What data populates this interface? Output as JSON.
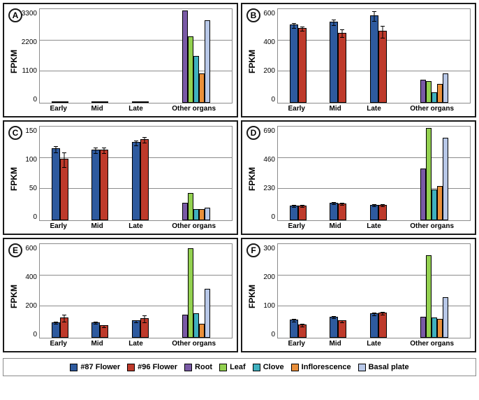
{
  "figure": {
    "ylabel": "FPKM",
    "categories_flower": [
      "Early",
      "Mid",
      "Late"
    ],
    "category_other": "Other organs",
    "flower_series": [
      "#87 Flower",
      "#96 Flower"
    ],
    "other_series": [
      "Root",
      "Leaf",
      "Clove",
      "Inflorescence",
      "Basal plate"
    ],
    "colors": {
      "#87 Flower": "#2e5a9e",
      "#96 Flower": "#be3a2b",
      "Root": "#7a5aa6",
      "Leaf": "#93d150",
      "Clove": "#3fb0bf",
      "Inflorescence": "#e98f3a",
      "Basal plate": "#b8c8e8"
    },
    "grid_color": "#8b8b8b",
    "background_color": "#ffffff",
    "label_fontsize": 12,
    "tick_fontsize": 10
  },
  "legend": [
    {
      "label": "#87 Flower",
      "color": "#2e5a9e"
    },
    {
      "label": "#96 Flower",
      "color": "#be3a2b"
    },
    {
      "label": "Root",
      "color": "#7a5aa6"
    },
    {
      "label": "Leaf",
      "color": "#93d150"
    },
    {
      "label": "Clove",
      "color": "#3fb0bf"
    },
    {
      "label": "Inflorescence",
      "color": "#e98f3a"
    },
    {
      "label": "Basal plate",
      "color": "#b8c8e8"
    }
  ],
  "panels": {
    "A": {
      "ylim": [
        0,
        3300
      ],
      "yticks": [
        0,
        1100,
        2200,
        3300
      ],
      "flower": {
        "Early": {
          "#87 Flower": 30,
          "#96 Flower": 30,
          "err": {
            "#87 Flower": 10,
            "#96 Flower": 10
          }
        },
        "Mid": {
          "#87 Flower": 30,
          "#96 Flower": 30,
          "err": {
            "#87 Flower": 10,
            "#96 Flower": 10
          }
        },
        "Late": {
          "#87 Flower": 30,
          "#96 Flower": 30,
          "err": {
            "#87 Flower": 10,
            "#96 Flower": 10
          }
        }
      },
      "other": {
        "Root": 3250,
        "Leaf": 2350,
        "Clove": 1650,
        "Inflorescence": 1040,
        "Basal plate": 2900
      }
    },
    "B": {
      "ylim": [
        0,
        600
      ],
      "yticks": [
        0,
        200,
        400,
        600
      ],
      "flower": {
        "Early": {
          "#87 Flower": 500,
          "#96 Flower": 480,
          "err": {
            "#87 Flower": 15,
            "#96 Flower": 15
          }
        },
        "Mid": {
          "#87 Flower": 520,
          "#96 Flower": 450,
          "err": {
            "#87 Flower": 20,
            "#96 Flower": 25
          }
        },
        "Late": {
          "#87 Flower": 560,
          "#96 Flower": 460,
          "err": {
            "#87 Flower": 30,
            "#96 Flower": 40
          }
        }
      },
      "other": {
        "Root": 150,
        "Leaf": 140,
        "Clove": 65,
        "Inflorescence": 120,
        "Basal plate": 190
      }
    },
    "C": {
      "ylim": [
        0,
        150
      ],
      "yticks": [
        0,
        50,
        100,
        150
      ],
      "flower": {
        "Early": {
          "#87 Flower": 115,
          "#96 Flower": 98,
          "err": {
            "#87 Flower": 5,
            "#96 Flower": 12
          }
        },
        "Mid": {
          "#87 Flower": 113,
          "#96 Flower": 113,
          "err": {
            "#87 Flower": 5,
            "#96 Flower": 5
          }
        },
        "Late": {
          "#87 Flower": 125,
          "#96 Flower": 130,
          "err": {
            "#87 Flower": 4,
            "#96 Flower": 5
          }
        }
      },
      "other": {
        "Root": 28,
        "Leaf": 44,
        "Clove": 18,
        "Inflorescence": 18,
        "Basal plate": 20
      }
    },
    "D": {
      "ylim": [
        0,
        690
      ],
      "yticks": [
        0,
        230,
        460,
        690
      ],
      "flower": {
        "Early": {
          "#87 Flower": 110,
          "#96 Flower": 110,
          "err": {
            "#87 Flower": 8,
            "#96 Flower": 8
          }
        },
        "Mid": {
          "#87 Flower": 130,
          "#96 Flower": 125,
          "err": {
            "#87 Flower": 8,
            "#96 Flower": 8
          }
        },
        "Late": {
          "#87 Flower": 115,
          "#96 Flower": 115,
          "err": {
            "#87 Flower": 8,
            "#96 Flower": 8
          }
        }
      },
      "other": {
        "Root": 380,
        "Leaf": 680,
        "Clove": 225,
        "Inflorescence": 250,
        "Basal plate": 610
      }
    },
    "E": {
      "ylim": [
        0,
        600
      ],
      "yticks": [
        0,
        200,
        400,
        600
      ],
      "flower": {
        "Early": {
          "#87 Flower": 100,
          "#96 Flower": 130,
          "err": {
            "#87 Flower": 8,
            "#96 Flower": 25
          }
        },
        "Mid": {
          "#87 Flower": 100,
          "#96 Flower": 80,
          "err": {
            "#87 Flower": 8,
            "#96 Flower": 8
          }
        },
        "Late": {
          "#87 Flower": 110,
          "#96 Flower": 125,
          "err": {
            "#87 Flower": 8,
            "#96 Flower": 25
          }
        }
      },
      "other": {
        "Root": 150,
        "Leaf": 575,
        "Clove": 155,
        "Inflorescence": 90,
        "Basal plate": 315
      }
    },
    "F": {
      "ylim": [
        0,
        300
      ],
      "yticks": [
        0,
        100,
        200,
        300
      ],
      "flower": {
        "Early": {
          "#87 Flower": 58,
          "#96 Flower": 42,
          "err": {
            "#87 Flower": 5,
            "#96 Flower": 5
          }
        },
        "Mid": {
          "#87 Flower": 68,
          "#96 Flower": 55,
          "err": {
            "#87 Flower": 4,
            "#96 Flower": 4
          }
        },
        "Late": {
          "#87 Flower": 78,
          "#96 Flower": 80,
          "err": {
            "#87 Flower": 5,
            "#96 Flower": 5
          }
        }
      },
      "other": {
        "Root": 68,
        "Leaf": 265,
        "Clove": 65,
        "Inflorescence": 60,
        "Basal plate": 130
      }
    }
  }
}
